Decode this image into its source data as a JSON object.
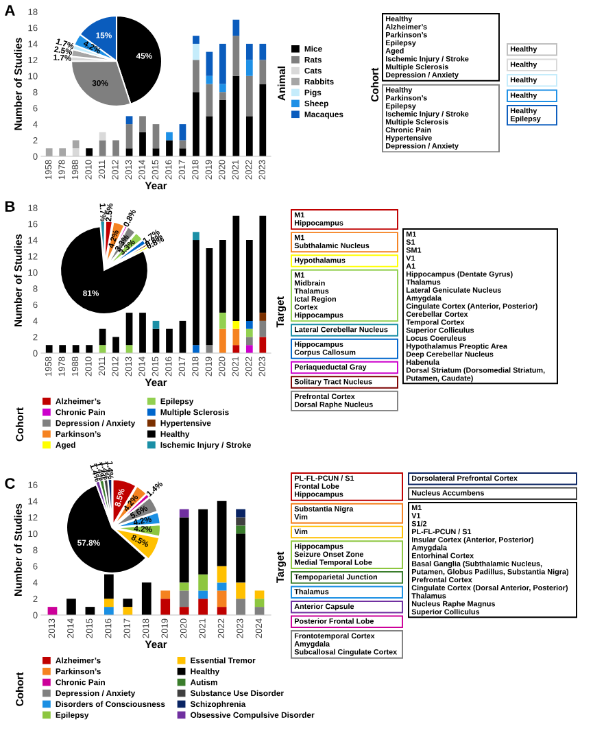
{
  "chart_data": [
    {
      "type": "bar",
      "stacked": true,
      "annotations": [
        "A"
      ],
      "xlabel": "Year",
      "ylabel": "Number of Studies",
      "legend": "right",
      "legend_title": "Animal",
      "ylim": [
        0,
        18
      ],
      "yticks": [
        0,
        2,
        4,
        6,
        8,
        10,
        12,
        14,
        16,
        18
      ],
      "categories": [
        "1958",
        "1978",
        "1988",
        "2010",
        "2011",
        "2012",
        "2013",
        "2014",
        "2015",
        "2016",
        "2017",
        "2018",
        "2019",
        "2020",
        "2021",
        "2022",
        "2023"
      ],
      "series": [
        {
          "name": "Mice",
          "color": "#000000",
          "values": [
            0,
            0,
            0,
            1,
            0,
            0,
            1,
            3,
            1,
            2,
            1,
            8,
            5,
            7,
            10,
            5,
            9
          ]
        },
        {
          "name": "Rats",
          "color": "#7f7f7f",
          "values": [
            0,
            0,
            0,
            0,
            2,
            2,
            3,
            2,
            3,
            0,
            1,
            4,
            4,
            1,
            5,
            5,
            3
          ]
        },
        {
          "name": "Cats",
          "color": "#d9d9d9",
          "values": [
            0,
            0,
            1,
            0,
            1,
            0,
            0,
            0,
            0,
            0,
            0,
            0,
            0,
            0,
            0,
            0,
            0
          ]
        },
        {
          "name": "Rabbits",
          "color": "#a6a6a6",
          "values": [
            1,
            1,
            1,
            0,
            0,
            0,
            0,
            0,
            0,
            0,
            0,
            0,
            0,
            0,
            0,
            0,
            0
          ]
        },
        {
          "name": "Pigs",
          "color": "#c5ecfb",
          "values": [
            0,
            0,
            0,
            0,
            0,
            0,
            0,
            0,
            0,
            0,
            0,
            2,
            0,
            0,
            0,
            0,
            0
          ]
        },
        {
          "name": "Sheep",
          "color": "#1e90e6",
          "values": [
            0,
            0,
            0,
            0,
            0,
            0,
            0,
            0,
            0,
            1,
            0,
            0,
            1,
            1,
            0,
            2,
            0
          ]
        },
        {
          "name": "Macaques",
          "color": "#0a5cbd",
          "values": [
            0,
            0,
            0,
            0,
            0,
            0,
            1,
            0,
            0,
            0,
            2,
            1,
            3,
            5,
            2,
            2,
            2
          ]
        }
      ]
    },
    {
      "type": "pie",
      "categories": [
        null,
        null,
        null,
        null,
        null,
        null,
        null
      ],
      "values": [
        45,
        30,
        1.7,
        2.5,
        1.7,
        4.2,
        15
      ],
      "colors": [
        "#000000",
        "#7f7f7f",
        "#d9d9d9",
        "#a6a6a6",
        "#c5ecfb",
        "#1e90e6",
        "#0a5cbd"
      ],
      "value_labels": [
        "45%",
        "30%",
        "1.7%",
        "2.5%",
        "1.7%",
        "4.2%",
        "15%"
      ]
    },
    {
      "type": "other",
      "title": "Cohort",
      "annotations": [
        "Healthy\nAlzheimer’s\nParkinson’s\nEpilepsy\nAged\nIschemic Injury / Stroke\nMultiple Sclerosis\nDepression / Anxiety",
        "Healthy",
        "Healthy",
        "Healthy",
        "Healthy",
        "Healthy\nEpilepsy",
        "Healthy\nParkinson’s\nEpilepsy\nIschemic Injury / Stroke\nMultiple Sclerosis\nChronic Pain\nHypertensive\nDepression / Anxiety"
      ],
      "colors": [
        "#000000",
        "#bfbfbf",
        "#d9d9d9",
        "#c5ecfb",
        "#1e90e6",
        "#0a5cbd",
        "#7f7f7f"
      ]
    },
    {
      "type": "bar",
      "stacked": true,
      "annotations": [
        "B"
      ],
      "xlabel": "Year",
      "ylabel": "Number of Studies",
      "legend": "bottom",
      "legend_title": "Cohort",
      "ylim": [
        0,
        18
      ],
      "yticks": [
        0,
        2,
        4,
        6,
        8,
        10,
        12,
        14,
        16,
        18
      ],
      "categories": [
        "1958",
        "1978",
        "1988",
        "2010",
        "2011",
        "2012",
        "2013",
        "2014",
        "2015",
        "2016",
        "2017",
        "2018",
        "2019",
        "2020",
        "2021",
        "2022",
        "2023"
      ],
      "series": [
        {
          "name": "Alzheimer’s",
          "color": "#c00000",
          "values": [
            0,
            0,
            0,
            0,
            0,
            0,
            0,
            0,
            0,
            0,
            0,
            0,
            0,
            0,
            1,
            0,
            2
          ]
        },
        {
          "name": "Chronic Pain",
          "color": "#cc00cc",
          "values": [
            0,
            0,
            0,
            0,
            0,
            0,
            0,
            0,
            0,
            0,
            0,
            0,
            0,
            0,
            0,
            1,
            0
          ]
        },
        {
          "name": "Depression / Anxiety",
          "color": "#808080",
          "values": [
            0,
            0,
            0,
            0,
            0,
            0,
            0,
            0,
            0,
            0,
            0,
            0,
            1,
            0,
            0,
            1,
            2
          ]
        },
        {
          "name": "Parkinson’s",
          "color": "#f58220",
          "values": [
            0,
            0,
            0,
            0,
            0,
            0,
            0,
            0,
            0,
            0,
            0,
            0,
            0,
            3,
            2,
            0,
            0
          ]
        },
        {
          "name": "Aged",
          "color": "#ffff00",
          "values": [
            0,
            0,
            0,
            0,
            0,
            0,
            0,
            0,
            0,
            0,
            0,
            0,
            0,
            0,
            1,
            0,
            0
          ]
        },
        {
          "name": "Epilepsy",
          "color": "#92d050",
          "values": [
            0,
            0,
            0,
            0,
            1,
            0,
            1,
            0,
            0,
            0,
            0,
            0,
            0,
            2,
            0,
            1,
            0
          ]
        },
        {
          "name": "Multiple Sclerosis",
          "color": "#0066cc",
          "values": [
            0,
            0,
            0,
            0,
            0,
            0,
            0,
            0,
            0,
            0,
            0,
            1,
            0,
            0,
            0,
            1,
            0
          ]
        },
        {
          "name": "Hypertensive",
          "color": "#7b3000",
          "values": [
            0,
            0,
            0,
            0,
            0,
            0,
            0,
            0,
            0,
            0,
            0,
            0,
            0,
            0,
            0,
            0,
            1
          ]
        },
        {
          "name": "Healthy",
          "color": "#000000",
          "values": [
            1,
            1,
            1,
            1,
            2,
            2,
            4,
            5,
            3,
            3,
            4,
            13,
            12,
            9,
            13,
            10,
            12
          ]
        },
        {
          "name": "Ischemic Injury / Stroke",
          "color": "#1b8fa6",
          "values": [
            0,
            0,
            0,
            0,
            0,
            0,
            0,
            0,
            1,
            0,
            0,
            1,
            0,
            0,
            0,
            0,
            0
          ]
        }
      ]
    },
    {
      "type": "pie",
      "categories": [
        null,
        null,
        null,
        null,
        null,
        null,
        null,
        null,
        null,
        null
      ],
      "values": [
        1.7,
        2.5,
        4.2,
        0.8,
        3.3,
        3.3,
        1.7,
        0.8,
        0.8,
        81
      ],
      "colors": [
        "#1b8fa6",
        "#c00000",
        "#f58220",
        "#cc00cc",
        "#808080",
        "#92d050",
        "#0066cc",
        "#7b3000",
        "#ffff00",
        "#000000"
      ],
      "value_labels": [
        "1.7%",
        "2.5%",
        "4.2%",
        "0.8%",
        "3.3%",
        "3.3%",
        "1.7%",
        "0.8%",
        "0.8%",
        "81%"
      ]
    },
    {
      "type": "other",
      "title": "Target",
      "annotations": [
        "M1\nHippocampus",
        "M1\nSubthalamic Nucleus",
        "Hypothalamus",
        "M1\nMidbrain\nThalamus\nIctal Region\nCortex\nHippocampus",
        "Lateral Cerebellar Nucleus",
        "Hippocampus\nCorpus Callosum",
        "Periaqueductal Gray",
        "Solitary Tract Nucleus",
        "Prefrontal Cortex\nDorsal Raphe Nucleus",
        "M1\nS1\nSM1\nV1\nA1\nHippocampus (Dentate Gyrus)\nThalamus\nLateral Geniculate Nucleus\nAmygdala\nCingulate Cortex (Anterior, Posterior)\nCerebellar Cortex\nTemporal Cortex\nSuperior Colliculus\nLocus Coeruleus\nHypothalamus Preoptic Area\nDeep Cerebellar Nucleus\nHabenula\nDorsal Striatum (Dorsomedial Striatum,\nPutamen, Caudate)"
      ],
      "colors": [
        "#c00000",
        "#f58220",
        "#ffff00",
        "#92d050",
        "#1b8fa6",
        "#0066cc",
        "#cc00cc",
        "#7b0000",
        "#808080",
        "#000000"
      ]
    },
    {
      "type": "bar",
      "stacked": true,
      "annotations": [
        "C"
      ],
      "xlabel": "Year",
      "ylabel": "Number of Studies",
      "legend": "bottom",
      "legend_title": "Cohort",
      "ylim": [
        0,
        16
      ],
      "yticks": [
        0,
        2,
        4,
        6,
        8,
        10,
        12,
        14,
        16
      ],
      "categories": [
        "2013",
        "2014",
        "2015",
        "2016",
        "2017",
        "2018",
        "2019",
        "2020",
        "2021",
        "2022",
        "2023",
        "2024"
      ],
      "series": [
        {
          "name": "Alzheimer’s",
          "color": "#c00000",
          "values": [
            0,
            0,
            0,
            0,
            0,
            0,
            2,
            1,
            2,
            1,
            0,
            0
          ]
        },
        {
          "name": "Parkinson’s",
          "color": "#f58220",
          "values": [
            0,
            0,
            0,
            0,
            0,
            0,
            1,
            0,
            0,
            2,
            0,
            0
          ]
        },
        {
          "name": "Chronic Pain",
          "color": "#cc0099",
          "values": [
            1,
            0,
            0,
            0,
            0,
            0,
            0,
            0,
            0,
            0,
            0,
            0
          ]
        },
        {
          "name": "Depression / Anxiety",
          "color": "#808080",
          "values": [
            0,
            0,
            0,
            0,
            0,
            0,
            0,
            2,
            0,
            0,
            2,
            1
          ]
        },
        {
          "name": "Disorders of Consciousness",
          "color": "#1a8fe3",
          "values": [
            0,
            0,
            0,
            1,
            0,
            0,
            0,
            0,
            1,
            1,
            0,
            0
          ]
        },
        {
          "name": "Epilepsy",
          "color": "#8dc63f",
          "values": [
            0,
            0,
            0,
            0,
            0,
            0,
            0,
            1,
            2,
            0,
            0,
            1
          ]
        },
        {
          "name": "Essential Tremor",
          "color": "#ffc000",
          "values": [
            0,
            0,
            0,
            1,
            1,
            0,
            0,
            0,
            0,
            2,
            2,
            1
          ]
        },
        {
          "name": "Healthy",
          "color": "#000000",
          "values": [
            0,
            2,
            1,
            3,
            1,
            4,
            0,
            8,
            8,
            8,
            6,
            0
          ]
        },
        {
          "name": "Autism",
          "color": "#3a7d2c",
          "values": [
            0,
            0,
            0,
            0,
            0,
            0,
            0,
            0,
            0,
            0,
            1,
            0
          ]
        },
        {
          "name": "Substance Use Disorder",
          "color": "#404040",
          "values": [
            0,
            0,
            0,
            0,
            0,
            0,
            0,
            0,
            0,
            0,
            1,
            0
          ]
        },
        {
          "name": "Schizophrenia",
          "color": "#0a2463",
          "values": [
            0,
            0,
            0,
            0,
            0,
            0,
            0,
            0,
            0,
            0,
            1,
            0
          ]
        },
        {
          "name": "Obsessive Compulsive Disorder",
          "color": "#7030a0",
          "values": [
            0,
            0,
            0,
            0,
            0,
            0,
            0,
            1,
            0,
            0,
            0,
            0
          ]
        }
      ]
    },
    {
      "type": "pie",
      "categories": [
        null,
        null,
        null,
        null,
        null,
        null,
        null,
        null,
        null,
        null,
        null,
        null
      ],
      "values": [
        8.5,
        4.2,
        1.4,
        5.6,
        4.2,
        4.2,
        8.5,
        57.8,
        1.4,
        1.4,
        1.4,
        1.4
      ],
      "colors": [
        "#c00000",
        "#f58220",
        "#cc0099",
        "#808080",
        "#1a8fe3",
        "#8dc63f",
        "#ffc000",
        "#000000",
        "#7030a0",
        "#3a7d2c",
        "#404040",
        "#0a2463"
      ],
      "value_labels": [
        "8.5%",
        "4.2%",
        "1.4%",
        "5.6%",
        "4.2%",
        "4.2%",
        "8.5%",
        "57.8%",
        "1.4%",
        "1.4%",
        "1.4%",
        "1.4%"
      ]
    },
    {
      "type": "other",
      "title": "Target",
      "annotations": [
        "PL-FL-PCUN / S1\nFrontal Lobe\nHippocampus",
        "Substantia Nigra\nVim",
        "Vim",
        "Hippocampus\nSeizure Onset Zone\nMedial Temporal Lobe",
        "Tempoparietal Junction",
        "Thalamus",
        "Anterior Capsule",
        "Posterior Frontal Lobe",
        "Frontotemporal Cortex\nAmygdala\nSubcallosal Cingulate Cortex",
        "Dorsolateral Prefrontal Cortex",
        "Nucleus Accumbens",
        "M1\nV1\nS1/2\nPL-FL-PCUN / S1\nInsular Cortex (Anterior, Posterior)\nAmygdala\nEntorhinal Cortex\nBasal Ganglia (Subthalamic Nucleus,\nPutamen, Globus Padillus, Substantia Nigra)\nPrefrontal Cortex\nCingulate Cortex (Dorsal Anterior, Posterior)\nThalamus\nNucleus Raphe Magnus\nSuperior Colliculus"
      ],
      "colors": [
        "#c00000",
        "#f58220",
        "#ffc000",
        "#8dc63f",
        "#3a7d2c",
        "#1a8fe3",
        "#7030a0",
        "#cc0099",
        "#808080",
        "#0a2463",
        "#404040",
        "#000000"
      ]
    }
  ]
}
